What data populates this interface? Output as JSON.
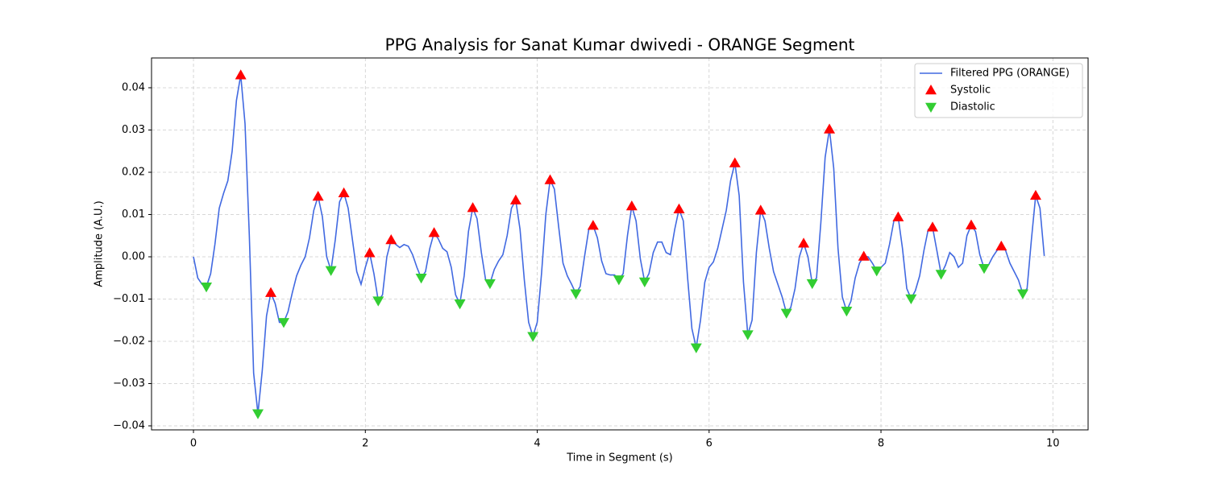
{
  "chart_data": {
    "type": "line",
    "title": "PPG Analysis for Sanat Kumar dwivedi - ORANGE Segment",
    "x_label": "Time in Segment (s)",
    "y_label": "Amplitude (A.U.)",
    "xlim": [
      -0.488,
      10.41
    ],
    "ylim": [
      -0.04095,
      0.04705
    ],
    "xticks": [
      0,
      2,
      4,
      6,
      8,
      10
    ],
    "yticks": [
      {
        "value": -0.04,
        "label": "−0.04"
      },
      {
        "value": -0.03,
        "label": "−0.03"
      },
      {
        "value": -0.02,
        "label": "−0.02"
      },
      {
        "value": -0.01,
        "label": "−0.01"
      },
      {
        "value": 0,
        "label": "0.00"
      },
      {
        "value": 0.01,
        "label": "0.01"
      },
      {
        "value": 0.02,
        "label": "0.02"
      },
      {
        "value": 0.03,
        "label": "0.03"
      },
      {
        "value": 0.04,
        "label": "0.04"
      }
    ],
    "grid": true,
    "legend": "upper right",
    "series": [
      {
        "name": "Filtered PPG (ORANGE)",
        "type": "line",
        "color": "#4169e1",
        "x": [
          0,
          0.05,
          0.1,
          0.15,
          0.2,
          0.25,
          0.3,
          0.35,
          0.4,
          0.45,
          0.5,
          0.55,
          0.6,
          0.65,
          0.7,
          0.75,
          0.8,
          0.85,
          0.9,
          0.95,
          1,
          1.05,
          1.1,
          1.15,
          1.2,
          1.25,
          1.3,
          1.35,
          1.4,
          1.45,
          1.5,
          1.55,
          1.6,
          1.65,
          1.7,
          1.75,
          1.8,
          1.85,
          1.9,
          1.95,
          2,
          2.05,
          2.1,
          2.15,
          2.2,
          2.25,
          2.3,
          2.35,
          2.4,
          2.45,
          2.5,
          2.55,
          2.6,
          2.65,
          2.7,
          2.75,
          2.8,
          2.85,
          2.9,
          2.95,
          3,
          3.05,
          3.1,
          3.15,
          3.2,
          3.25,
          3.3,
          3.35,
          3.4,
          3.45,
          3.5,
          3.55,
          3.6,
          3.65,
          3.7,
          3.75,
          3.8,
          3.85,
          3.9,
          3.95,
          4,
          4.05,
          4.1,
          4.15,
          4.2,
          4.25,
          4.3,
          4.35,
          4.4,
          4.45,
          4.5,
          4.55,
          4.6,
          4.65,
          4.7,
          4.75,
          4.8,
          4.85,
          4.9,
          4.95,
          5,
          5.05,
          5.1,
          5.15,
          5.2,
          5.25,
          5.3,
          5.35,
          5.4,
          5.45,
          5.5,
          5.55,
          5.6,
          5.65,
          5.7,
          5.75,
          5.8,
          5.85,
          5.9,
          5.95,
          6,
          6.05,
          6.1,
          6.15,
          6.2,
          6.25,
          6.3,
          6.35,
          6.4,
          6.45,
          6.5,
          6.55,
          6.6,
          6.65,
          6.7,
          6.75,
          6.8,
          6.85,
          6.9,
          6.95,
          7,
          7.05,
          7.1,
          7.15,
          7.2,
          7.25,
          7.3,
          7.35,
          7.4,
          7.45,
          7.5,
          7.55,
          7.6,
          7.65,
          7.7,
          7.75,
          7.8,
          7.85,
          7.9,
          7.95,
          8,
          8.05,
          8.1,
          8.15,
          8.2,
          8.25,
          8.3,
          8.35,
          8.4,
          8.45,
          8.5,
          8.55,
          8.6,
          8.65,
          8.7,
          8.75,
          8.8,
          8.85,
          8.9,
          8.95,
          9,
          9.05,
          9.1,
          9.15,
          9.2,
          9.25,
          9.3,
          9.35,
          9.4,
          9.45,
          9.5,
          9.55,
          9.6,
          9.65,
          9.7,
          9.75,
          9.8,
          9.85,
          9.9
        ],
        "values": [
          0,
          -0.005,
          -0.0065,
          -0.0071,
          -0.004,
          0.003,
          0.0115,
          0.015,
          0.018,
          0.025,
          0.037,
          0.043,
          0.0315,
          0.005,
          -0.0275,
          -0.0371,
          -0.027,
          -0.014,
          -0.0085,
          -0.011,
          -0.0155,
          -0.0155,
          -0.013,
          -0.0085,
          -0.0045,
          -0.002,
          0,
          0.0045,
          0.011,
          0.0143,
          0.0095,
          0,
          -0.0032,
          0.004,
          0.013,
          0.0151,
          0.0115,
          0.004,
          -0.0035,
          -0.0065,
          -0.0025,
          0.0009,
          -0.004,
          -0.0104,
          -0.009,
          0,
          0.004,
          0.003,
          0.0022,
          0.0029,
          0.0025,
          0.0005,
          -0.0025,
          -0.005,
          -0.0035,
          0.002,
          0.0057,
          0.0042,
          0.002,
          0.0012,
          -0.0025,
          -0.009,
          -0.0111,
          -0.0045,
          0.006,
          0.0116,
          0.009,
          0.001,
          -0.0055,
          -0.0063,
          -0.003,
          -0.001,
          0.0005,
          0.005,
          0.0115,
          0.0134,
          0.0065,
          -0.0055,
          -0.0155,
          -0.0188,
          -0.0155,
          -0.004,
          0.01,
          0.0182,
          0.016,
          0.007,
          -0.0015,
          -0.0045,
          -0.0065,
          -0.0087,
          -0.007,
          0,
          0.0065,
          0.0074,
          0.0045,
          -0.001,
          -0.004,
          -0.0043,
          -0.0043,
          -0.0054,
          -0.004,
          0.005,
          0.012,
          0.0085,
          -0.0005,
          -0.0059,
          -0.004,
          0.001,
          0.0035,
          0.0035,
          0.001,
          0.0005,
          0.0065,
          0.0113,
          0.0085,
          -0.005,
          -0.017,
          -0.0215,
          -0.015,
          -0.006,
          -0.0025,
          -0.0012,
          0.002,
          0.0065,
          0.011,
          0.018,
          0.0222,
          0.0145,
          -0.006,
          -0.0184,
          -0.015,
          0.001,
          0.011,
          0.0085,
          0.002,
          -0.0035,
          -0.0065,
          -0.0095,
          -0.0133,
          -0.012,
          -0.0075,
          0,
          0.0032,
          0,
          -0.0063,
          -0.005,
          0.008,
          0.0235,
          0.0302,
          0.021,
          0.002,
          -0.0095,
          -0.0128,
          -0.0105,
          -0.005,
          -0.0015,
          0.0001,
          0,
          -0.0015,
          -0.0033,
          -0.0025,
          -0.0015,
          0.003,
          0.0085,
          0.0094,
          0.002,
          -0.0075,
          -0.0099,
          -0.008,
          -0.0045,
          0.0015,
          0.0065,
          0.007,
          0.0015,
          -0.0041,
          -0.002,
          0.001,
          0,
          -0.0025,
          -0.0015,
          0.005,
          0.0075,
          0.006,
          0.0005,
          -0.0027,
          -0.002,
          0,
          0.0015,
          0.0025,
          0.0015,
          -0.0015,
          -0.0035,
          -0.0055,
          -0.0087,
          -0.0075,
          0.004,
          0.0145,
          0.0115,
          0.0002
        ]
      },
      {
        "name": "Systolic",
        "type": "scatter",
        "marker": "up",
        "color": "#ff0000",
        "x": [
          0.55,
          0.9,
          1.45,
          1.75,
          2.05,
          2.3,
          2.8,
          3.25,
          3.75,
          4.15,
          4.65,
          5.1,
          5.65,
          6.3,
          6.6,
          7.1,
          7.4,
          7.8,
          8.2,
          8.6,
          9.05,
          9.4,
          9.8
        ],
        "values": [
          0.043,
          -0.0085,
          0.0143,
          0.0151,
          0.0009,
          0.004,
          0.0057,
          0.0116,
          0.0134,
          0.0182,
          0.0074,
          0.012,
          0.0113,
          0.0222,
          0.011,
          0.0032,
          0.0302,
          0.0001,
          0.0094,
          0.007,
          0.0075,
          0.0025,
          0.0145
        ]
      },
      {
        "name": "Diastolic",
        "type": "scatter",
        "marker": "down",
        "color": "#32cd32",
        "x": [
          0.15,
          0.75,
          1.05,
          1.6,
          2.15,
          2.65,
          3.1,
          3.45,
          3.95,
          4.45,
          4.95,
          5.25,
          5.85,
          6.45,
          6.9,
          7.2,
          7.6,
          7.95,
          8.35,
          8.7,
          9.2,
          9.65
        ],
        "values": [
          -0.0071,
          -0.0371,
          -0.0155,
          -0.0032,
          -0.0104,
          -0.005,
          -0.0111,
          -0.0063,
          -0.0188,
          -0.0087,
          -0.0054,
          -0.0059,
          -0.0215,
          -0.0184,
          -0.0133,
          -0.0063,
          -0.0128,
          -0.0033,
          -0.0099,
          -0.0041,
          -0.0027,
          -0.0087
        ]
      }
    ]
  }
}
